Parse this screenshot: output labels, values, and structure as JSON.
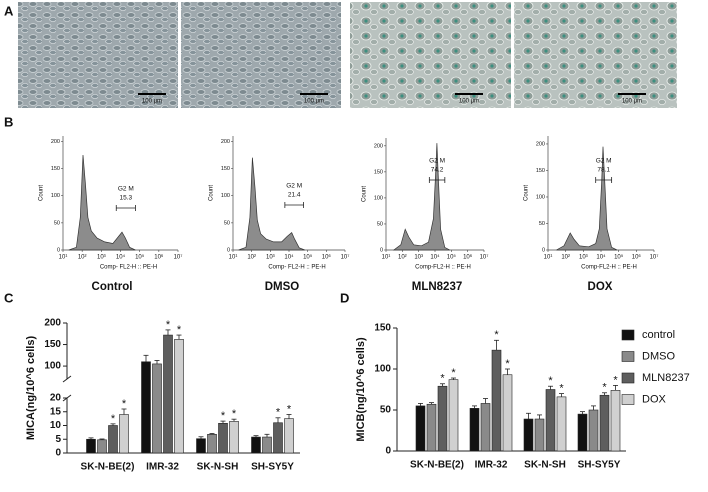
{
  "panel_labels": [
    "A",
    "B",
    "C",
    "D"
  ],
  "images": [
    {
      "scale_bar": "100 μm"
    },
    {
      "scale_bar": "100 μm"
    },
    {
      "scale_bar": "100 μm"
    },
    {
      "scale_bar": "100 μm"
    }
  ],
  "chart_data": [
    {
      "type": "area",
      "title": "Control",
      "xlabel": "Comp- FL2-H :: PE-H",
      "ylabel": "Count",
      "color": "#8c8c8c",
      "xscale": "log",
      "x": [
        20,
        50,
        80,
        110,
        150,
        200,
        300,
        600,
        1500,
        4000,
        8000,
        12000,
        18000,
        30000,
        60000
      ],
      "values": [
        0,
        5,
        60,
        175,
        120,
        60,
        35,
        22,
        15,
        12,
        25,
        33,
        22,
        5,
        0
      ],
      "xlim": [
        10,
        10000000
      ],
      "xticks": [
        {
          "value": 10,
          "label": "10¹"
        },
        {
          "value": 100,
          "label": "10²"
        },
        {
          "value": 1000,
          "label": "10³"
        },
        {
          "value": 10000,
          "label": "10⁴"
        },
        {
          "value": 100000,
          "label": "10⁵"
        },
        {
          "value": 1000000,
          "label": "10⁶"
        },
        {
          "value": 10000000,
          "label": "10⁷"
        }
      ],
      "ylim": [
        0,
        210
      ],
      "yticks": [
        0,
        50,
        100,
        150,
        200
      ],
      "gate": {
        "label": "G2 M",
        "percent": 15.3,
        "range": [
          6000,
          60000
        ]
      }
    },
    {
      "type": "area",
      "title": "DMSO",
      "xlabel": "Comp- FL2-H :: PE-H",
      "ylabel": "Count",
      "color": "#8c8c8c",
      "xscale": "log",
      "x": [
        20,
        50,
        80,
        110,
        150,
        200,
        300,
        600,
        1500,
        4000,
        8000,
        14000,
        20000,
        35000,
        70000
      ],
      "values": [
        0,
        5,
        60,
        170,
        115,
        55,
        30,
        20,
        15,
        15,
        25,
        32,
        20,
        4,
        0
      ],
      "xlim": [
        10,
        10000000
      ],
      "xticks": [
        {
          "value": 10,
          "label": "10¹"
        },
        {
          "value": 100,
          "label": "10²"
        },
        {
          "value": 1000,
          "label": "10³"
        },
        {
          "value": 10000,
          "label": "10⁴"
        },
        {
          "value": 100000,
          "label": "10⁵"
        },
        {
          "value": 1000000,
          "label": "10⁶"
        },
        {
          "value": 10000000,
          "label": "10⁷"
        }
      ],
      "ylim": [
        0,
        210
      ],
      "yticks": [
        0,
        50,
        100,
        150,
        200
      ],
      "gate": {
        "label": "G2 M",
        "percent": 21.4,
        "range": [
          6000,
          60000
        ]
      }
    },
    {
      "type": "area",
      "title": "MLN8237",
      "xlabel": "Comp-FL2-H :: PE-H",
      "ylabel": "Count",
      "color": "#8c8c8c",
      "xscale": "log",
      "x": [
        30,
        80,
        150,
        250,
        500,
        1500,
        4000,
        8000,
        11000,
        13000,
        16000,
        22000,
        40000,
        80000
      ],
      "values": [
        0,
        10,
        40,
        25,
        10,
        8,
        15,
        60,
        150,
        205,
        140,
        40,
        5,
        0
      ],
      "xlim": [
        10,
        10000000
      ],
      "xticks": [
        {
          "value": 10,
          "label": "10¹"
        },
        {
          "value": 100,
          "label": "10²"
        },
        {
          "value": 1000,
          "label": "10³"
        },
        {
          "value": 10000,
          "label": "10⁴"
        },
        {
          "value": 100000,
          "label": "10⁵"
        },
        {
          "value": 1000000,
          "label": "10⁶"
        },
        {
          "value": 10000000,
          "label": "10⁷"
        }
      ],
      "ylim": [
        0,
        215
      ],
      "yticks": [
        0,
        50,
        100,
        150,
        200
      ],
      "gate": {
        "label": "G2 M",
        "percent": 74.2,
        "range": [
          4500,
          40000
        ]
      }
    },
    {
      "type": "area",
      "title": "DOX",
      "xlabel": "Comp-FL2-H :: PE-H",
      "ylabel": "Count",
      "color": "#8c8c8c",
      "xscale": "log",
      "x": [
        30,
        80,
        180,
        300,
        600,
        2000,
        5000,
        8000,
        11000,
        13000,
        16000,
        22000,
        40000,
        80000
      ],
      "values": [
        0,
        8,
        32,
        20,
        8,
        6,
        12,
        40,
        130,
        195,
        135,
        40,
        5,
        0
      ],
      "xlim": [
        10,
        10000000
      ],
      "xticks": [
        {
          "value": 10,
          "label": "10¹"
        },
        {
          "value": 100,
          "label": "10²"
        },
        {
          "value": 1000,
          "label": "10³"
        },
        {
          "value": 10000,
          "label": "10⁴"
        },
        {
          "value": 100000,
          "label": "10⁵"
        },
        {
          "value": 1000000,
          "label": "10⁶"
        },
        {
          "value": 10000000,
          "label": "10⁷"
        }
      ],
      "ylim": [
        0,
        215
      ],
      "yticks": [
        0,
        50,
        100,
        150,
        200
      ],
      "gate": {
        "label": "G2 M",
        "percent": 78.1,
        "range": [
          5000,
          40000
        ]
      }
    },
    {
      "type": "bar",
      "ylabel": "MICA(ng/10^6 cells)",
      "categories": [
        "SK-N-BE(2)",
        "IMR-32",
        "SK-N-SH",
        "SH-SY5Y"
      ],
      "series": [
        {
          "name": "control",
          "color": "#111111",
          "values": [
            5,
            110,
            5.2,
            5.8
          ],
          "errors": [
            0.5,
            15,
            0.7,
            0.5
          ],
          "significance": [
            null,
            null,
            null,
            null
          ]
        },
        {
          "name": "DMSO",
          "color": "#8a8a8a",
          "values": [
            4.8,
            105,
            6.8,
            5.8
          ],
          "errors": [
            0.3,
            8,
            0.3,
            1
          ],
          "significance": [
            null,
            null,
            null,
            null
          ]
        },
        {
          "name": "MLN8237",
          "color": "#5e5e5e",
          "values": [
            10,
            172,
            10.8,
            11
          ],
          "errors": [
            0.6,
            12,
            0.8,
            1.8
          ],
          "significance": [
            "*",
            "*",
            "*",
            "*"
          ]
        },
        {
          "name": "DOX",
          "color": "#d0d0d0",
          "values": [
            14,
            162,
            11.5,
            12.5
          ],
          "errors": [
            2,
            10,
            0.8,
            1.5
          ],
          "significance": [
            "*",
            "*",
            "*",
            "*"
          ]
        }
      ],
      "ylim": [
        0,
        200
      ],
      "ybreak": [
        20,
        70
      ],
      "yticks": [
        0,
        5,
        10,
        15,
        20,
        100,
        150,
        200
      ],
      "legend": false
    },
    {
      "type": "bar",
      "ylabel": "MICB(ng/10^6 cells)",
      "categories": [
        "SK-N-BE(2)",
        "IMR-32",
        "SK-N-SH",
        "SH-SY5Y"
      ],
      "series": [
        {
          "name": "control",
          "color": "#111111",
          "values": [
            55,
            52,
            39,
            45
          ],
          "errors": [
            3,
            3,
            7,
            3
          ],
          "significance": [
            null,
            null,
            null,
            null
          ]
        },
        {
          "name": "DMSO",
          "color": "#8a8a8a",
          "values": [
            57,
            58,
            39,
            50
          ],
          "errors": [
            2,
            6,
            5,
            5
          ],
          "significance": [
            null,
            null,
            null,
            null
          ]
        },
        {
          "name": "MLN8237",
          "color": "#5e5e5e",
          "values": [
            79,
            123,
            75,
            68
          ],
          "errors": [
            3,
            12,
            4,
            3
          ],
          "significance": [
            "*",
            "*",
            "*",
            "*"
          ]
        },
        {
          "name": "DOX",
          "color": "#d0d0d0",
          "values": [
            87,
            93,
            66,
            74
          ],
          "errors": [
            2,
            7,
            4,
            6
          ],
          "significance": [
            "*",
            "*",
            "*",
            "*"
          ]
        }
      ],
      "ylim": [
        0,
        150
      ],
      "yticks": [
        0,
        50,
        100,
        150
      ],
      "legend": "right"
    }
  ]
}
